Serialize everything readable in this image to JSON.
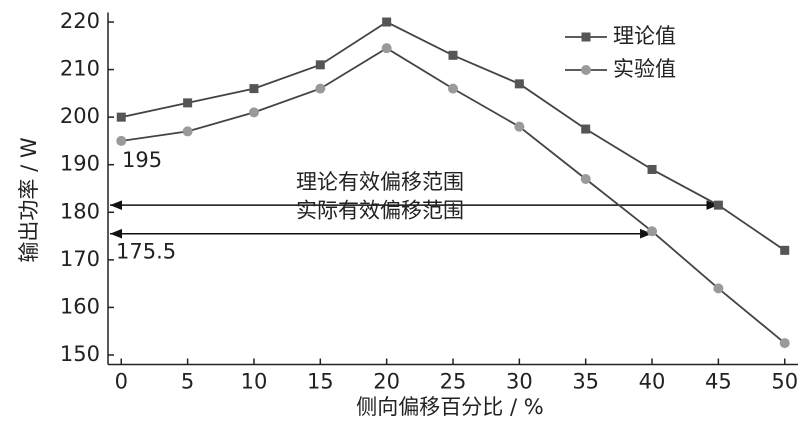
{
  "chart_data": {
    "type": "line",
    "xlabel": "侧向偏移百分比 / %",
    "ylabel": "输出功率 / W",
    "x": [
      0,
      5,
      10,
      15,
      20,
      25,
      30,
      35,
      40,
      45,
      50
    ],
    "series": [
      {
        "name": "理论值",
        "color": "#555555",
        "marker": "square",
        "values": [
          200,
          203,
          206,
          211,
          220,
          213,
          207,
          197.5,
          189,
          181.5,
          172
        ]
      },
      {
        "name": "实验值",
        "color": "#9a9a9a",
        "marker": "circle",
        "values": [
          195,
          197,
          201,
          206,
          214.5,
          206,
          198,
          187,
          176,
          164,
          152.5
        ]
      }
    ],
    "range_arrows": [
      {
        "label": "理论有效偏移范围",
        "y": 181.5,
        "x_end": 45
      },
      {
        "label": "实际有效偏移范围",
        "y": 175.5,
        "x_end": 40
      }
    ],
    "xlim": [
      -1,
      51
    ],
    "ylim": [
      148,
      222
    ],
    "xticks": [
      0,
      5,
      10,
      15,
      20,
      25,
      30,
      35,
      40,
      45,
      50
    ],
    "yticks": [
      150,
      160,
      170,
      180,
      190,
      200,
      210,
      220
    ],
    "legend": "upper right"
  }
}
